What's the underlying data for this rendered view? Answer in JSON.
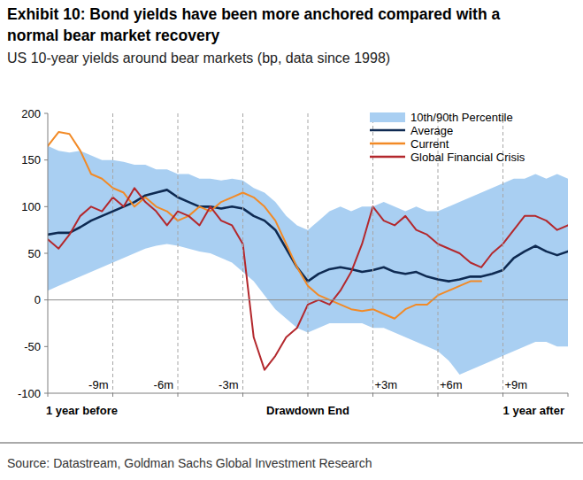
{
  "chart_data": {
    "type": "line",
    "title": "Exhibit 10: Bond yields have been more anchored compared with a normal bear market recovery",
    "subtitle": "US 10-year yields around bear markets (bp, data since 1998)",
    "source": "Source: Datastream, Goldman Sachs Global Investment Research",
    "x": [
      -12,
      -11.5,
      -11,
      -10.5,
      -10,
      -9.5,
      -9,
      -8.5,
      -8,
      -7.5,
      -7,
      -6.5,
      -6,
      -5.5,
      -5,
      -4.5,
      -4,
      -3.5,
      -3,
      -2.5,
      -2,
      -1.5,
      -1,
      -0.5,
      0,
      0.5,
      1,
      1.5,
      2,
      2.5,
      3,
      3.5,
      4,
      4.5,
      5,
      5.5,
      6,
      6.5,
      7,
      7.5,
      8,
      8.5,
      9,
      9.5,
      10,
      10.5,
      11,
      11.5,
      12
    ],
    "series": [
      {
        "name": "10th/90th Percentile",
        "type": "band",
        "color": "#a9cff2",
        "values": [
          165,
          160,
          158,
          160,
          155,
          150,
          150,
          148,
          145,
          145,
          140,
          140,
          135,
          135,
          130,
          130,
          128,
          130,
          128,
          120,
          115,
          105,
          90,
          80,
          75,
          85,
          95,
          100,
          95,
          100,
          100,
          105,
          100,
          95,
          100,
          95,
          95,
          100,
          105,
          110,
          115,
          120,
          125,
          130,
          130,
          135,
          130,
          135,
          130
        ],
        "lower": [
          10,
          15,
          20,
          25,
          30,
          35,
          40,
          45,
          50,
          55,
          58,
          60,
          58,
          55,
          52,
          50,
          45,
          40,
          30,
          20,
          5,
          -10,
          -20,
          -30,
          -35,
          -30,
          -25,
          -25,
          -25,
          -25,
          -30,
          -30,
          -35,
          -40,
          -45,
          -50,
          -55,
          -65,
          -80,
          -75,
          -70,
          -65,
          -60,
          -55,
          -50,
          -45,
          -45,
          -50,
          -50
        ]
      },
      {
        "name": "Average",
        "color": "#0e2a52",
        "values": [
          70,
          72,
          72,
          78,
          85,
          90,
          95,
          100,
          105,
          112,
          115,
          118,
          110,
          105,
          100,
          100,
          98,
          100,
          98,
          90,
          85,
          75,
          55,
          35,
          20,
          28,
          33,
          35,
          33,
          30,
          32,
          35,
          30,
          28,
          30,
          25,
          22,
          20,
          22,
          25,
          25,
          28,
          32,
          45,
          52,
          58,
          52,
          48,
          52
        ]
      },
      {
        "name": "Current",
        "color": "#f28a26",
        "values": [
          165,
          180,
          178,
          160,
          135,
          130,
          120,
          115,
          100,
          110,
          100,
          95,
          85,
          90,
          100,
          95,
          105,
          110,
          115,
          110,
          100,
          85,
          60,
          35,
          15,
          5,
          0,
          -5,
          -10,
          -12,
          -10,
          -15,
          -20,
          -10,
          -5,
          -5,
          5,
          10,
          15,
          20,
          20,
          null,
          null,
          null,
          null,
          null,
          null,
          null,
          null
        ]
      },
      {
        "name": "Global Financial Crisis",
        "color": "#b3282d",
        "values": [
          65,
          55,
          70,
          90,
          100,
          95,
          110,
          100,
          120,
          105,
          95,
          80,
          95,
          90,
          80,
          100,
          85,
          80,
          60,
          -40,
          -75,
          -60,
          -40,
          -30,
          -5,
          0,
          -5,
          10,
          30,
          60,
          100,
          85,
          80,
          90,
          75,
          70,
          60,
          55,
          50,
          40,
          35,
          50,
          60,
          75,
          90,
          90,
          85,
          75,
          80
        ]
      }
    ],
    "xlim": [
      -12,
      12
    ],
    "xticks": [
      {
        "value": -12,
        "label": "1 year before"
      },
      {
        "value": -9,
        "label": "-9m"
      },
      {
        "value": -6,
        "label": "-6m"
      },
      {
        "value": -3,
        "label": "-3m"
      },
      {
        "value": 0,
        "label": "Drawdown End"
      },
      {
        "value": 3,
        "label": "+3m"
      },
      {
        "value": 6,
        "label": "+6m"
      },
      {
        "value": 9,
        "label": "+9m"
      },
      {
        "value": 12,
        "label": "1 year after"
      }
    ],
    "ylim": [
      -100,
      200
    ],
    "yticks": [
      -100,
      -50,
      0,
      50,
      100,
      150,
      200
    ],
    "baseline": 0,
    "grid": false,
    "legend": "top-right"
  }
}
